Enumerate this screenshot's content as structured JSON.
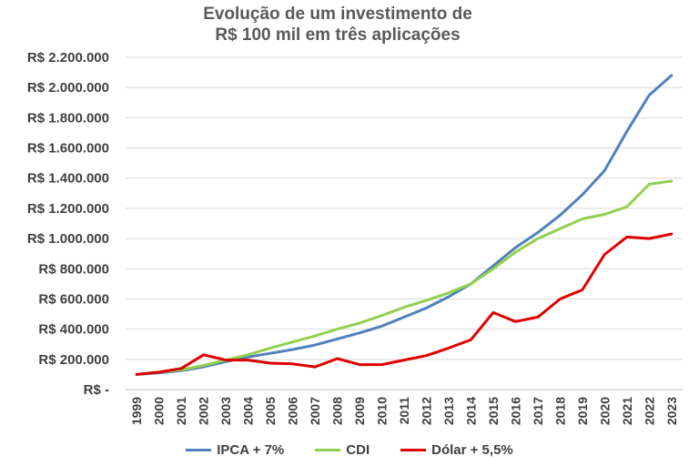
{
  "chart_data": {
    "type": "line",
    "title_line1": "Evolução de um investimento de",
    "title_line2": "R$ 100 mil em três aplicações",
    "xlabel": "",
    "ylabel": "",
    "ylim": [
      0,
      2200000
    ],
    "yticks": [
      0,
      200000,
      400000,
      600000,
      800000,
      1000000,
      1200000,
      1400000,
      1600000,
      1800000,
      2000000,
      2200000
    ],
    "ytick_labels": [
      "R$ -",
      "R$ 200.000",
      "R$ 400.000",
      "R$ 600.000",
      "R$ 800.000",
      "R$ 1.000.000",
      "R$ 1.200.000",
      "R$ 1.400.000",
      "R$ 1.600.000",
      "R$ 1.800.000",
      "R$ 2.000.000",
      "R$ 2.200.000"
    ],
    "categories": [
      "1999",
      "2000",
      "2001",
      "2002",
      "2003",
      "2004",
      "2005",
      "2006",
      "2007",
      "2008",
      "2009",
      "2010",
      "2011",
      "2012",
      "2013",
      "2014",
      "2015",
      "2016",
      "2017",
      "2018",
      "2019",
      "2020",
      "2021",
      "2022",
      "2023"
    ],
    "grid": true,
    "legend_position": "bottom",
    "series": [
      {
        "name": "IPCA + 7%",
        "color": "#4f81bd",
        "values": [
          100000,
          110000,
          125000,
          150000,
          185000,
          215000,
          240000,
          265000,
          295000,
          335000,
          375000,
          420000,
          480000,
          540000,
          615000,
          700000,
          820000,
          940000,
          1040000,
          1155000,
          1290000,
          1450000,
          1710000,
          1950000,
          2080000
        ]
      },
      {
        "name": "CDI",
        "color": "#92d050",
        "values": [
          100000,
          115000,
          130000,
          160000,
          195000,
          230000,
          275000,
          315000,
          355000,
          400000,
          440000,
          490000,
          545000,
          590000,
          640000,
          700000,
          800000,
          910000,
          1000000,
          1065000,
          1130000,
          1160000,
          1210000,
          1360000,
          1380000
        ]
      },
      {
        "name": "Dólar + 5,5%",
        "color": "#e00000",
        "values": [
          100000,
          115000,
          140000,
          230000,
          195000,
          195000,
          175000,
          170000,
          150000,
          205000,
          165000,
          165000,
          195000,
          225000,
          275000,
          330000,
          510000,
          450000,
          480000,
          600000,
          660000,
          895000,
          1010000,
          1000000,
          1030000
        ]
      }
    ]
  }
}
